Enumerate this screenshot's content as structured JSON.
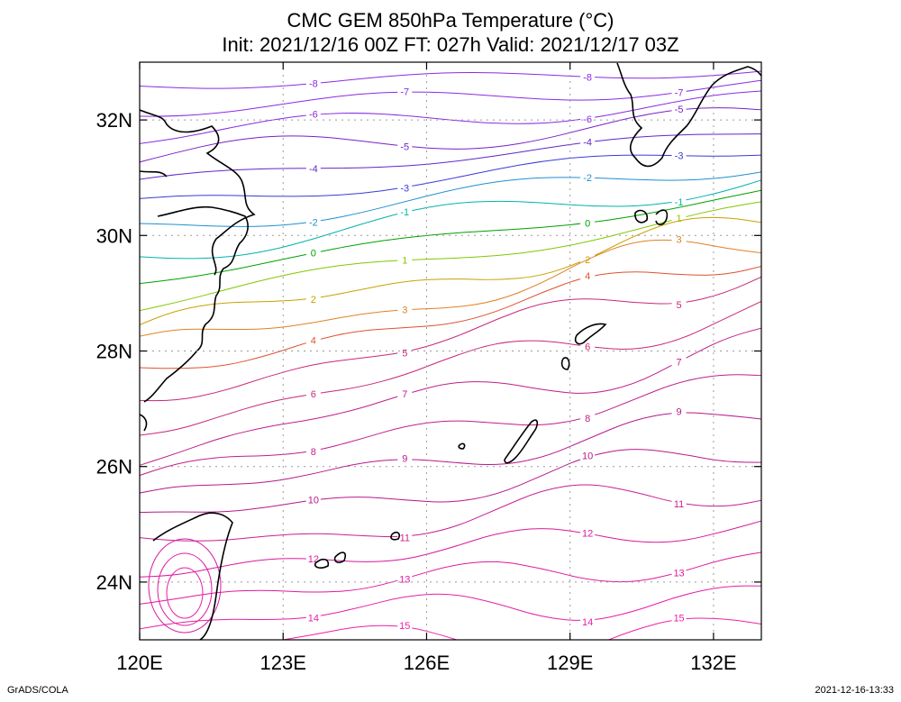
{
  "header": {
    "title": "CMC GEM 850hPa Temperature (°C)",
    "subtitle": "Init: 2021/12/16 00Z  FT: 027h  Valid: 2021/12/17 03Z"
  },
  "footer": {
    "left": "GrADS/COLA",
    "right": "2021-12-16-13:33"
  },
  "map": {
    "lon_range": [
      120,
      133
    ],
    "lat_range": [
      23,
      33
    ],
    "lon_ticks": [
      "120E",
      "123E",
      "126E",
      "129E",
      "132E"
    ],
    "lat_ticks": [
      "24N",
      "26N",
      "28N",
      "30N",
      "32N"
    ],
    "grid": true,
    "grid_style": "dotted",
    "contour_interval": 1,
    "contours": [
      {
        "level": "-8",
        "color": "#8a2be2"
      },
      {
        "level": "-7",
        "color": "#8a2be2"
      },
      {
        "level": "-6",
        "color": "#8a2be2"
      },
      {
        "level": "-5",
        "color": "#7a1fc8"
      },
      {
        "level": "-4",
        "color": "#5f27c8"
      },
      {
        "level": "-3",
        "color": "#3a3ad8"
      },
      {
        "level": "-2",
        "color": "#1f8fd0"
      },
      {
        "level": "-1",
        "color": "#00b4a8"
      },
      {
        "level": "0",
        "color": "#00a000"
      },
      {
        "level": "1",
        "color": "#80c800"
      },
      {
        "level": "2",
        "color": "#c8a000"
      },
      {
        "level": "3",
        "color": "#e08020"
      },
      {
        "level": "4",
        "color": "#e05030"
      },
      {
        "level": "5",
        "color": "#c8287a"
      },
      {
        "level": "6",
        "color": "#c8287a"
      },
      {
        "level": "7",
        "color": "#c01e8a"
      },
      {
        "level": "8",
        "color": "#c01e8a"
      },
      {
        "level": "9",
        "color": "#b8188a"
      },
      {
        "level": "10",
        "color": "#b8188a"
      },
      {
        "level": "11",
        "color": "#c81e96"
      },
      {
        "level": "12",
        "color": "#d8189e"
      },
      {
        "level": "13",
        "color": "#e0189e"
      },
      {
        "level": "14",
        "color": "#e81ea8"
      },
      {
        "level": "15",
        "color": "#f01ea8"
      }
    ]
  }
}
